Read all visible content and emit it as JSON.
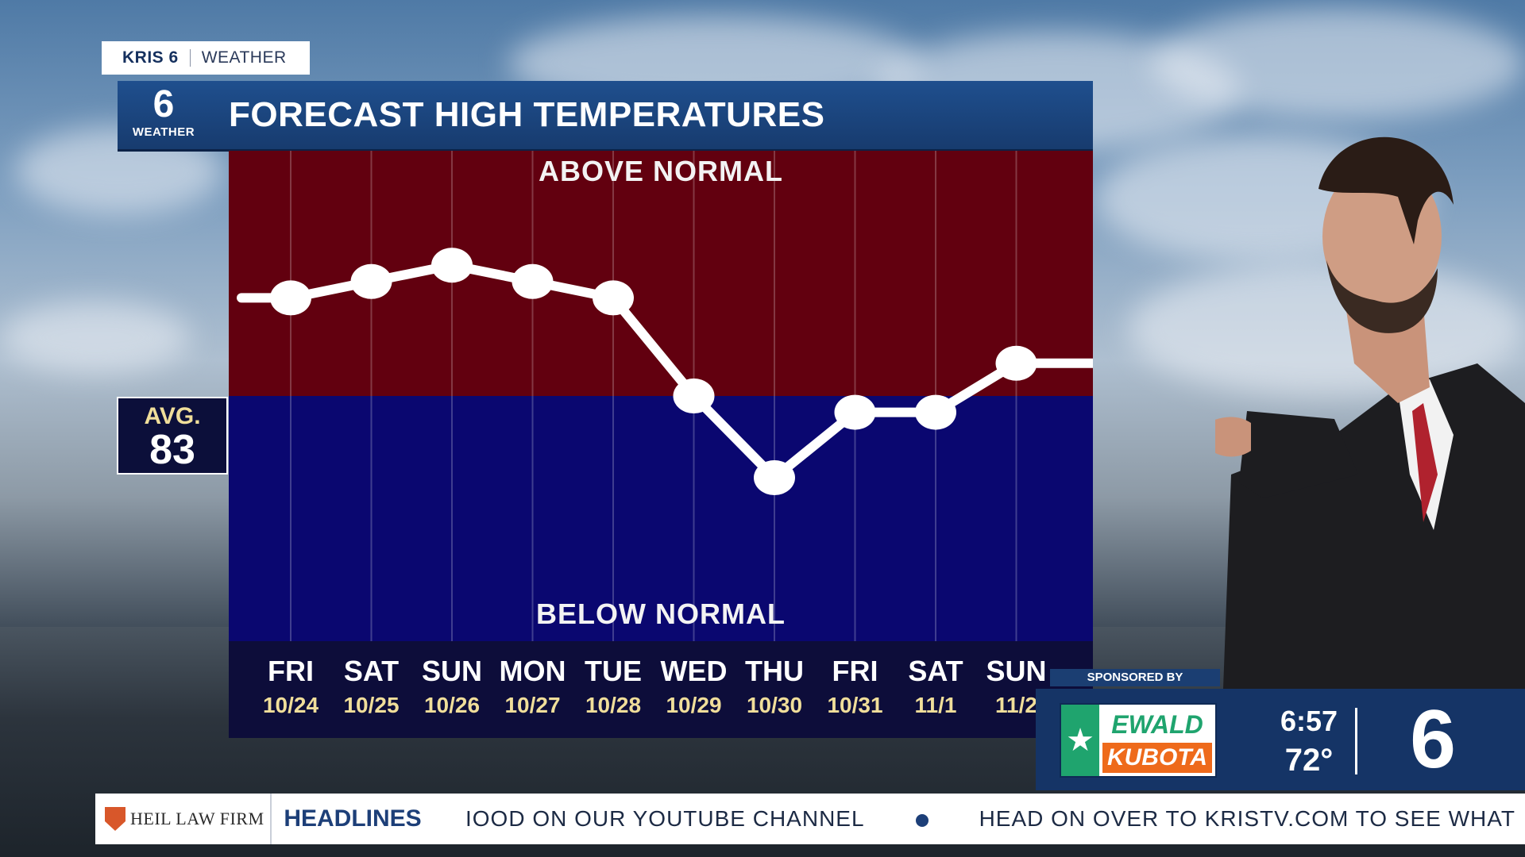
{
  "branding": {
    "station": "KRIS 6",
    "section": "WEATHER",
    "logo_number": "6",
    "logo_label": "WEATHER"
  },
  "graphic_title": "FORECAST HIGH TEMPERATURES",
  "average": {
    "label": "AVG.",
    "value": "83"
  },
  "chart_data": {
    "type": "line",
    "title": "FORECAST HIGH TEMPERATURES",
    "region_labels": {
      "above": "ABOVE NORMAL",
      "below": "BELOW NORMAL"
    },
    "baseline": 83,
    "categories": [
      {
        "day": "FRI",
        "date": "10/24"
      },
      {
        "day": "SAT",
        "date": "10/25"
      },
      {
        "day": "SUN",
        "date": "10/26"
      },
      {
        "day": "MON",
        "date": "10/27"
      },
      {
        "day": "TUE",
        "date": "10/28"
      },
      {
        "day": "WED",
        "date": "10/29"
      },
      {
        "day": "THU",
        "date": "10/30"
      },
      {
        "day": "FRI",
        "date": "10/31"
      },
      {
        "day": "SAT",
        "date": "11/1"
      },
      {
        "day": "SUN",
        "date": "11/2"
      }
    ],
    "values": [
      89,
      90,
      91,
      90,
      89,
      83,
      78,
      82,
      82,
      85
    ],
    "ylim": [
      68,
      98
    ],
    "grid": true,
    "colors": {
      "above": "#62000f",
      "below": "#0a0770",
      "line": "#ffffff",
      "axis_bg": "#0d0d3a",
      "date": "#f0de9a"
    }
  },
  "bug": {
    "sponsored_label": "SPONSORED BY",
    "sponsor_top": "EWALD",
    "sponsor_bottom": "KUBOTA",
    "time": "6:57",
    "temperature": "72°",
    "station_number": "6"
  },
  "ticker": {
    "sponsor": "HEIL LAW FIRM",
    "section": "HEADLINES",
    "items": [
      "IOOD ON OUR YOUTUBE CHANNEL",
      "HEAD ON OVER TO KRISTV.COM TO SEE WHAT"
    ]
  }
}
